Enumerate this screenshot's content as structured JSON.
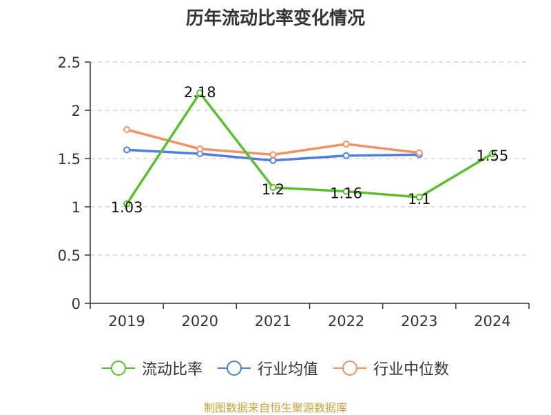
{
  "chart_data": {
    "type": "line",
    "title": "历年流动比率变化情况",
    "categories": [
      "2019",
      "2020",
      "2021",
      "2022",
      "2023",
      "2024"
    ],
    "ylim": [
      0,
      2.5
    ],
    "yticks": [
      "0",
      "0.5",
      "1",
      "1.5",
      "2",
      "2.5"
    ],
    "series": [
      {
        "name": "流动比率",
        "color": "#5abf2e",
        "values": [
          1.03,
          2.18,
          1.2,
          1.16,
          1.1,
          1.55
        ],
        "labels": [
          "1.03",
          "2.18",
          "1.2",
          "1.16",
          "1.1",
          "1.55"
        ]
      },
      {
        "name": "行业均值",
        "color": "#4f7fdc",
        "values": [
          1.59,
          1.55,
          1.48,
          1.53,
          1.54,
          null
        ]
      },
      {
        "name": "行业中位数",
        "color": "#f29162",
        "values": [
          1.8,
          1.6,
          1.54,
          1.65,
          1.56,
          null
        ]
      }
    ]
  },
  "source": {
    "text": "制图数据来自恒生聚源数据库",
    "color": "#c8a33a"
  }
}
